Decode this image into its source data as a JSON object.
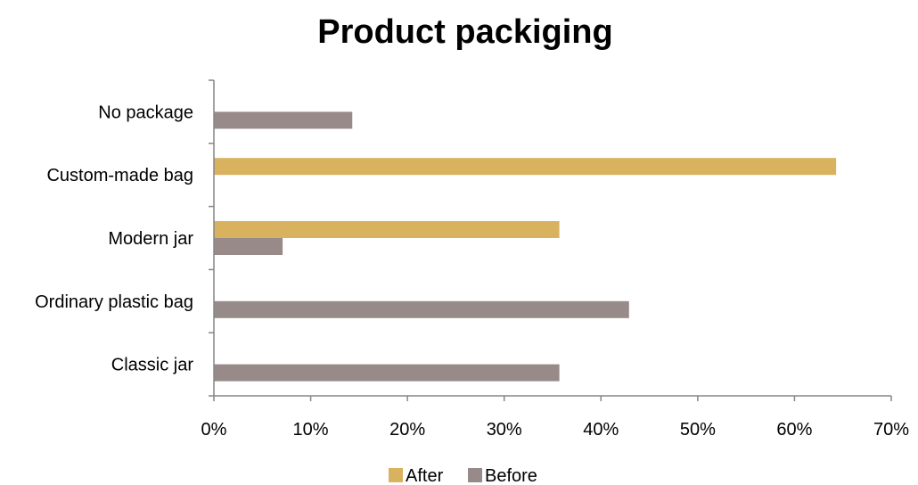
{
  "chart_data": {
    "type": "bar",
    "orientation": "horizontal",
    "title": "Product packiging",
    "xlabel": "",
    "ylabel": "",
    "xlim": [
      0,
      70
    ],
    "x_ticks": [
      "0%",
      "10%",
      "20%",
      "30%",
      "40%",
      "50%",
      "60%",
      "70%"
    ],
    "grid": false,
    "legend_position": "bottom",
    "categories": [
      "No package",
      "Custom-made  bag",
      "Modern jar",
      "Ordinary plastic bag",
      "Classic jar"
    ],
    "series": [
      {
        "name": "After",
        "color": "#D9B25F",
        "values": [
          0,
          64.3,
          35.7,
          0,
          0
        ]
      },
      {
        "name": "Before",
        "color": "#978A89",
        "values": [
          14.3,
          0,
          7.1,
          42.9,
          35.7
        ]
      }
    ]
  }
}
